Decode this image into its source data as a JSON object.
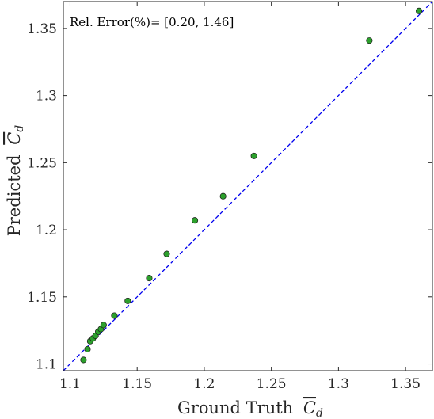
{
  "chart_data": {
    "type": "scatter",
    "xlabel_prefix": "Ground Truth",
    "ylabel_prefix": "Predicted",
    "quantity": "C",
    "quantity_subscript": "d",
    "annotation": "Rel. Error(%)= [0.20, 1.46]",
    "xlim": [
      1.095,
      1.37
    ],
    "ylim": [
      1.095,
      1.37
    ],
    "x_ticks": [
      1.1,
      1.15,
      1.2,
      1.25,
      1.3,
      1.35
    ],
    "x_tick_labels": [
      "1.1",
      "1.15",
      "1.2",
      "1.25",
      "1.3",
      "1.35"
    ],
    "y_ticks": [
      1.1,
      1.15,
      1.2,
      1.25,
      1.3,
      1.35
    ],
    "y_tick_labels": [
      "1.1",
      "1.15",
      "1.2",
      "1.25",
      "1.3",
      "1.35"
    ],
    "grid": false,
    "reference_line": {
      "style": "dashed",
      "color": "#0000ee",
      "from": [
        1.095,
        1.095
      ],
      "to": [
        1.37,
        1.37
      ]
    },
    "marker_color": "#2ca02c",
    "marker_edge": "#1a1a1a",
    "points": [
      {
        "x": 1.11,
        "y": 1.103
      },
      {
        "x": 1.113,
        "y": 1.111
      },
      {
        "x": 1.115,
        "y": 1.117
      },
      {
        "x": 1.117,
        "y": 1.119
      },
      {
        "x": 1.119,
        "y": 1.121
      },
      {
        "x": 1.121,
        "y": 1.124
      },
      {
        "x": 1.123,
        "y": 1.126
      },
      {
        "x": 1.125,
        "y": 1.129
      },
      {
        "x": 1.133,
        "y": 1.136
      },
      {
        "x": 1.143,
        "y": 1.147
      },
      {
        "x": 1.159,
        "y": 1.164
      },
      {
        "x": 1.172,
        "y": 1.182
      },
      {
        "x": 1.193,
        "y": 1.207
      },
      {
        "x": 1.214,
        "y": 1.225
      },
      {
        "x": 1.237,
        "y": 1.255
      },
      {
        "x": 1.323,
        "y": 1.341
      },
      {
        "x": 1.36,
        "y": 1.363
      }
    ]
  }
}
